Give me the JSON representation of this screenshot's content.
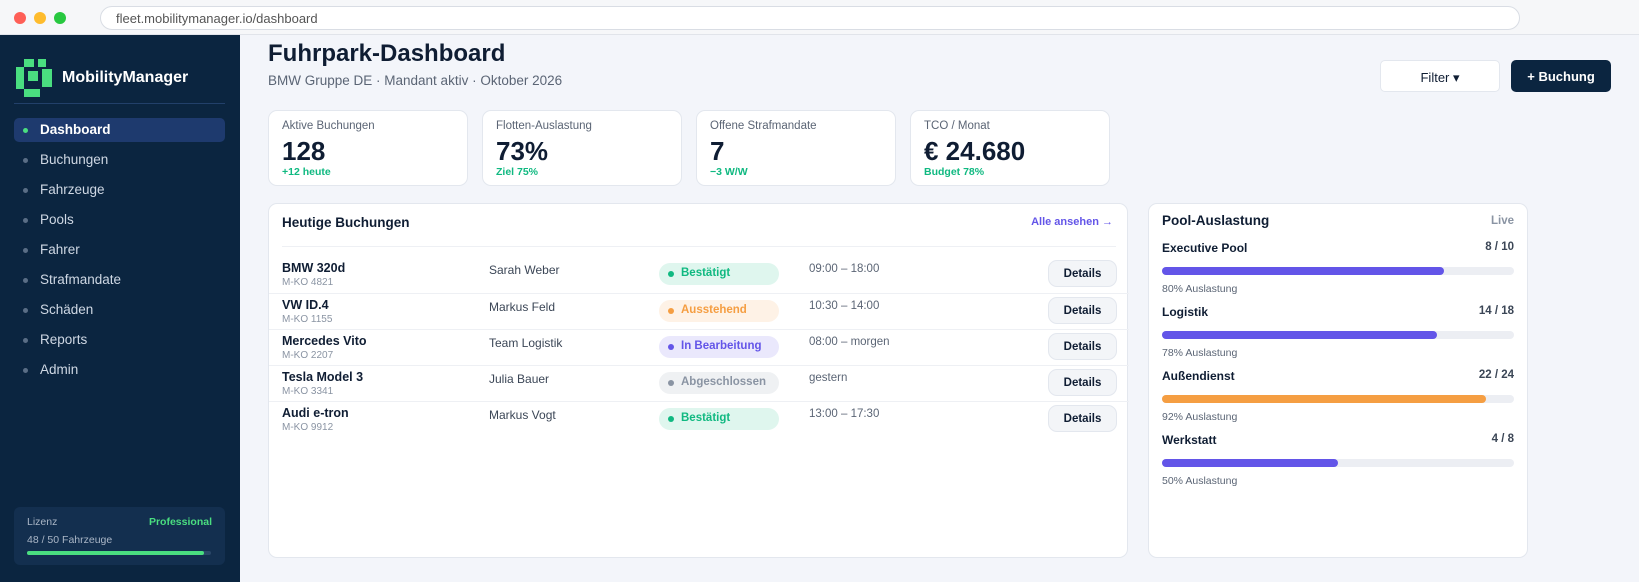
{
  "browser": {
    "url": "fleet.mobilitymanager.io/dashboard"
  },
  "sidebar": {
    "brand": "MobilityManager",
    "nav": [
      "Dashboard",
      "Buchungen",
      "Fahrzeuge",
      "Pools",
      "Fahrer",
      "Strafmandate",
      "Schäden",
      "Reports",
      "Admin"
    ],
    "license": {
      "label": "Lizenz",
      "plan": "Professional",
      "usage": "48 / 50 Fahrzeuge"
    }
  },
  "header": {
    "title": "Fuhrpark-Dashboard",
    "subtitle": "BMW Gruppe DE · Mandant aktiv · Oktober 2026",
    "filter_button": "Filter ▾",
    "add_button": "+ Buchung"
  },
  "kpis": [
    {
      "label": "Aktive Buchungen",
      "value": "128",
      "delta": "+12 heute"
    },
    {
      "label": "Flotten-Auslastung",
      "value": "73%",
      "delta": "Ziel 75%"
    },
    {
      "label": "Offene Strafmandate",
      "value": "7",
      "delta": "−3 W/W"
    },
    {
      "label": "TCO / Monat",
      "value": "€ 24.680",
      "delta": "Budget 78%"
    }
  ],
  "bookings": {
    "title": "Heutige Buchungen",
    "link": "Alle ansehen →",
    "action": "Details",
    "rows": [
      {
        "vehicle": "BMW 320d",
        "plate": "M-KO 4821",
        "driver": "Sarah Weber",
        "status": "Bestätigt",
        "status_color": "#10b981",
        "time": "09:00 – 18:00"
      },
      {
        "vehicle": "VW ID.4",
        "plate": "M-KO 1155",
        "driver": "Markus Feld",
        "status": "Ausstehend",
        "status_color": "#f59e42",
        "time": "10:30 – 14:00"
      },
      {
        "vehicle": "Mercedes Vito",
        "plate": "M-KO 2207",
        "driver": "Team Logistik",
        "status": "In Bearbeitung",
        "status_color": "#6355e8",
        "time": "08:00 – morgen"
      },
      {
        "vehicle": "Tesla Model 3",
        "plate": "M-KO 3341",
        "driver": "Julia Bauer",
        "status": "Abgeschlossen",
        "status_color": "#8a94a3",
        "time": "gestern"
      },
      {
        "vehicle": "Audi e-tron",
        "plate": "M-KO 9912",
        "driver": "Markus Vogt",
        "status": "Bestätigt",
        "status_color": "#10b981",
        "time": "13:00 – 17:30"
      }
    ]
  },
  "pools": {
    "title": "Pool-Auslastung",
    "badge": "Live",
    "items": [
      {
        "name": "Executive Pool",
        "count": "8 / 10",
        "value": 80,
        "value_label": "80% Auslastung",
        "color": "#6355e8"
      },
      {
        "name": "Logistik",
        "count": "14 / 18",
        "value": 78,
        "value_label": "78% Auslastung",
        "color": "#6355e8"
      },
      {
        "name": "Außendienst",
        "count": "22 / 24",
        "value": 92,
        "value_label": "92% Auslastung",
        "color": "#f59e42"
      },
      {
        "name": "Werkstatt",
        "count": "4 / 8",
        "value": 50,
        "value_label": "50% Auslastung",
        "color": "#6355e8"
      }
    ]
  }
}
